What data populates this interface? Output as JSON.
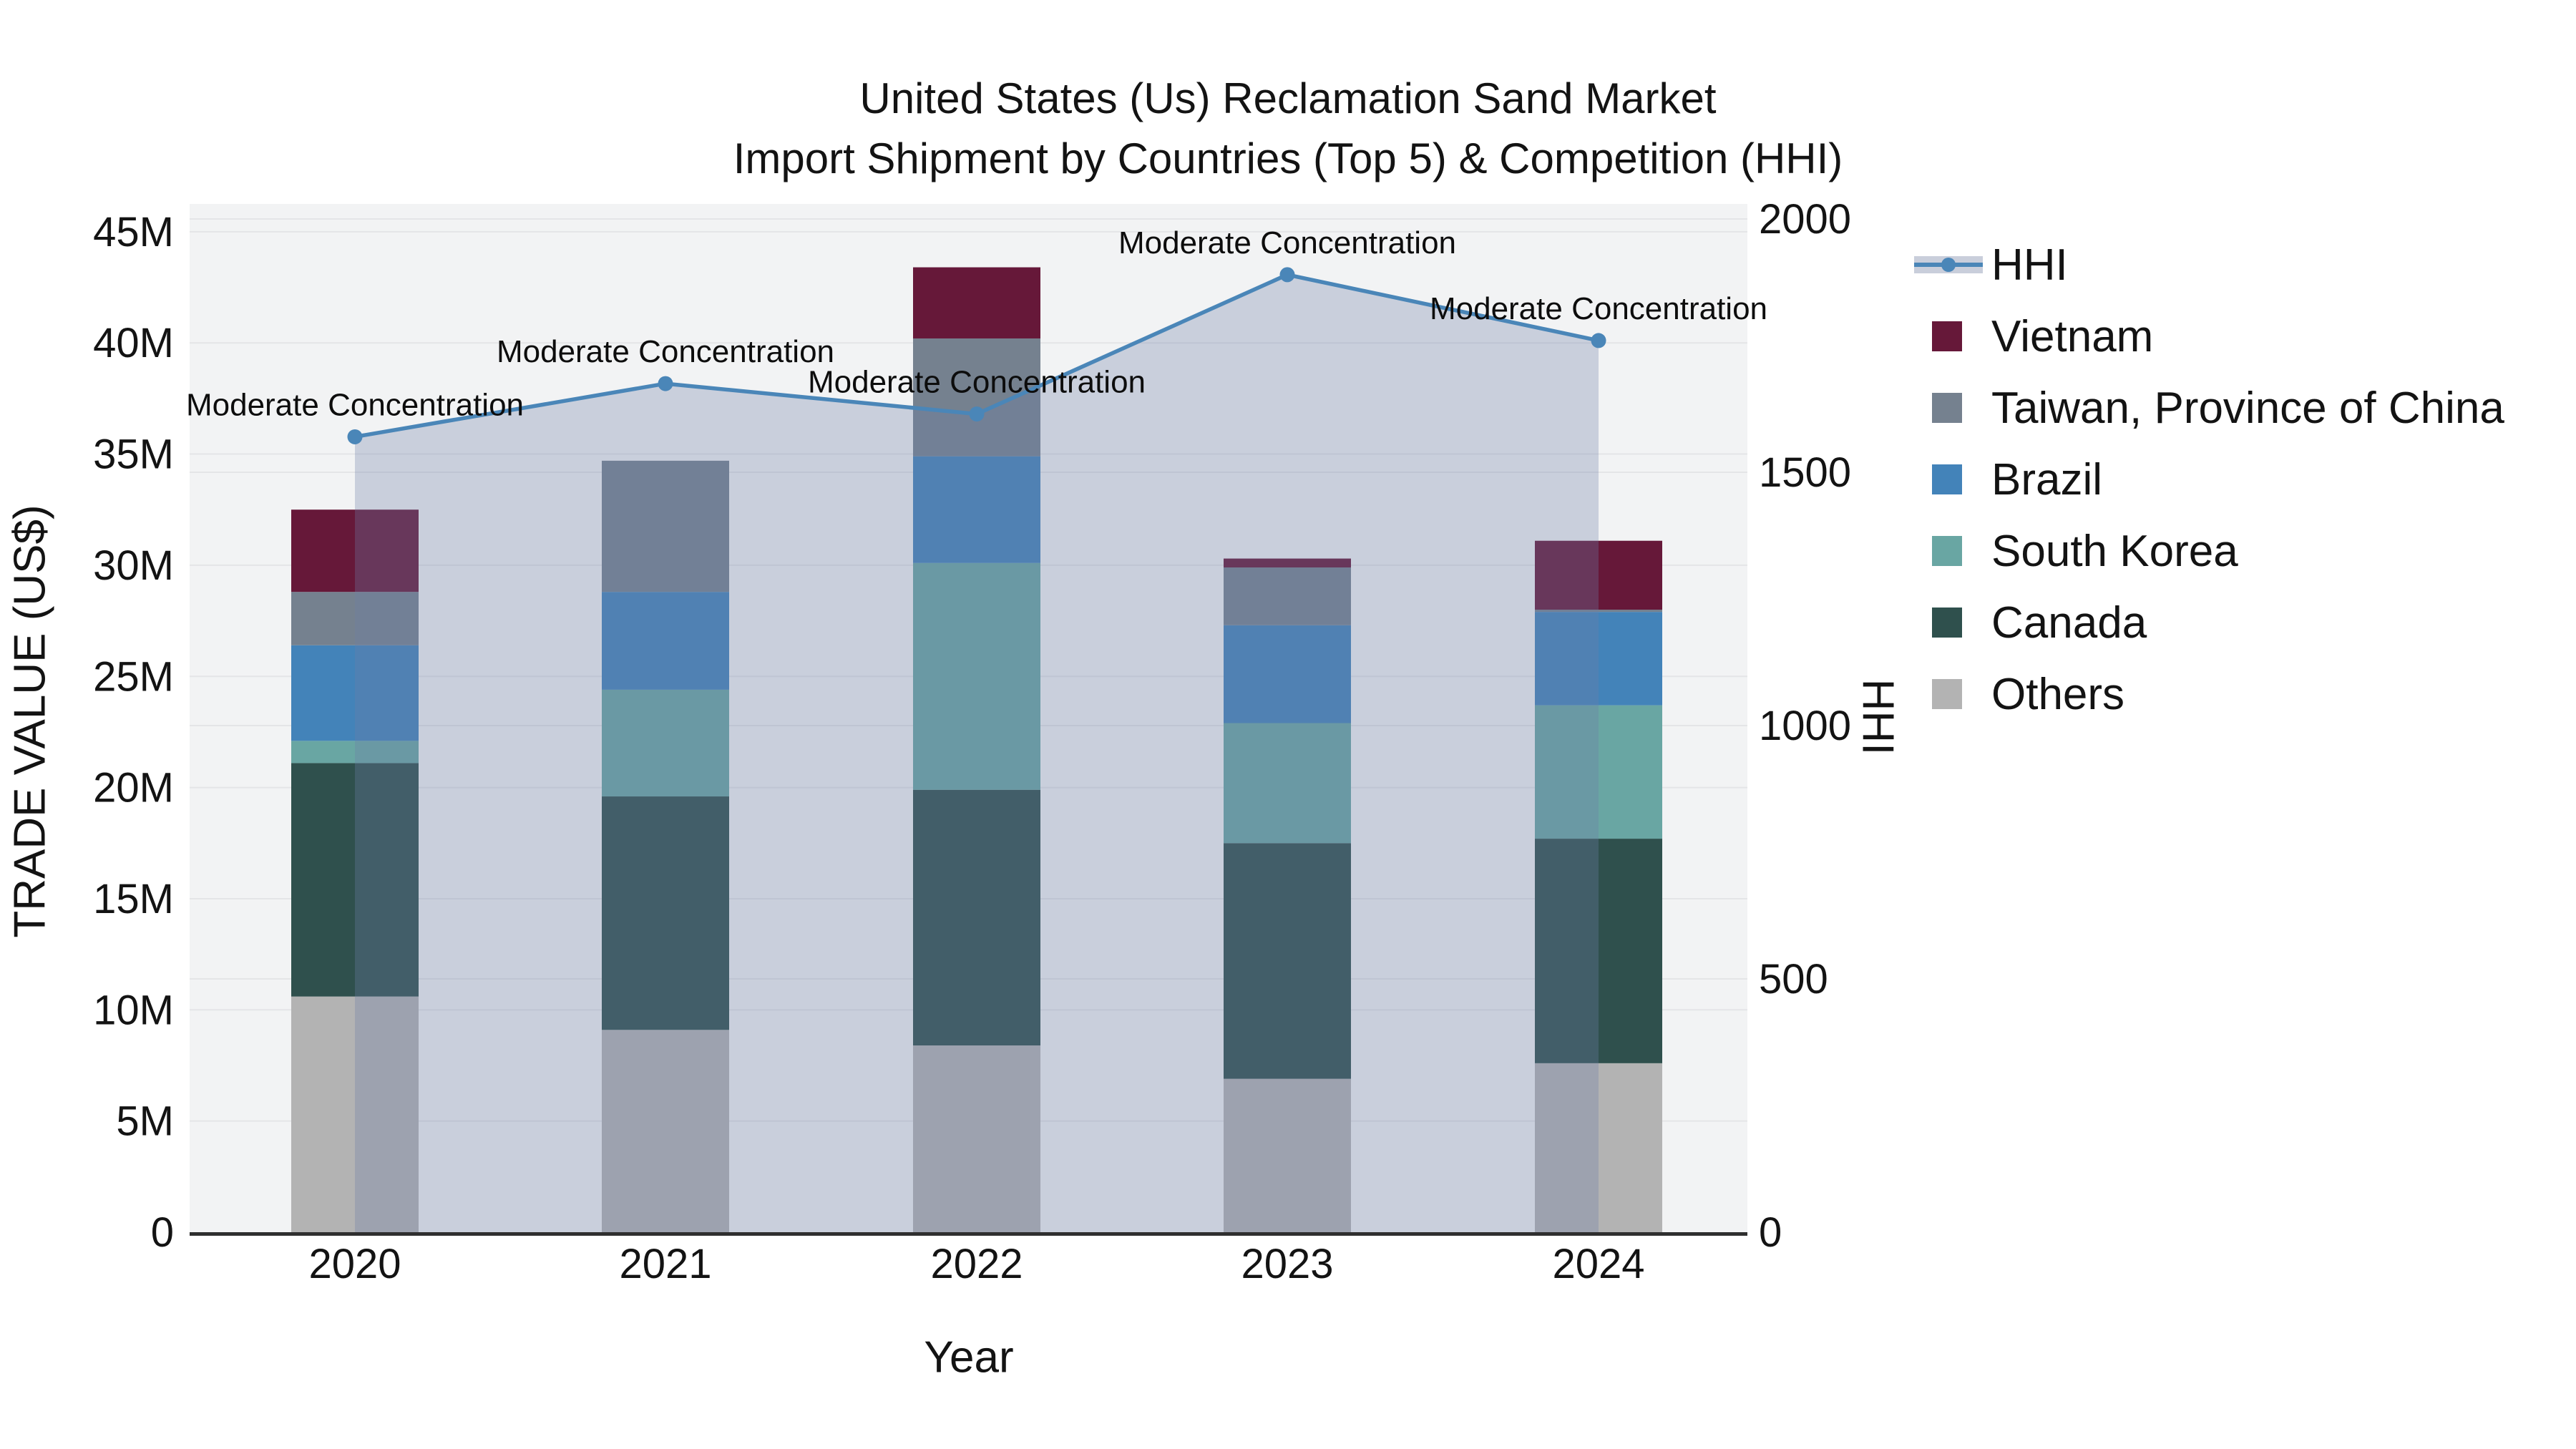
{
  "chart_data": {
    "type": "bar+line",
    "title_lines": [
      "United States (Us) Reclamation Sand Market",
      "Import Shipment by Countries (Top 5) & Competition (HHI)"
    ],
    "x": {
      "title": "Year",
      "categories": [
        "2020",
        "2021",
        "2022",
        "2023",
        "2024"
      ]
    },
    "left_axis": {
      "title": "TRADE VALUE (US$)",
      "unit": "M US$",
      "tick_labels": [
        "0",
        "5M",
        "10M",
        "15M",
        "20M",
        "25M",
        "30M",
        "35M",
        "40M",
        "45M"
      ],
      "tick_values_musd": [
        0,
        5,
        10,
        15,
        20,
        25,
        30,
        35,
        40,
        45
      ],
      "range_musd": [
        0,
        45
      ],
      "grid": true
    },
    "right_axis": {
      "title": "HHI",
      "tick_labels": [
        "0",
        "500",
        "1000",
        "1500",
        "2000"
      ],
      "tick_values": [
        0,
        500,
        1000,
        1500,
        2000
      ],
      "range": [
        0,
        2000
      ],
      "grid": true
    },
    "stack_series_bottom_to_top": [
      {
        "name": "Others",
        "color": "#b3b3b3",
        "values_musd": [
          10.6,
          9.1,
          8.4,
          6.9,
          7.6
        ]
      },
      {
        "name": "Canada",
        "color": "#2f504d",
        "values_musd": [
          10.5,
          10.5,
          11.5,
          10.6,
          10.1
        ]
      },
      {
        "name": "South Korea",
        "color": "#69a6a3",
        "values_musd": [
          1.0,
          4.8,
          10.2,
          5.4,
          6.0
        ]
      },
      {
        "name": "Brazil",
        "color": "#4383b9",
        "values_musd": [
          4.3,
          4.4,
          4.8,
          4.4,
          4.2
        ]
      },
      {
        "name": "Taiwan, Province of China",
        "color": "#75818f",
        "values_musd": [
          2.4,
          5.9,
          5.3,
          2.6,
          0.1
        ]
      },
      {
        "name": "Vietnam",
        "color": "#661839",
        "values_musd": [
          3.7,
          0,
          3.2,
          0.4,
          3.1
        ]
      }
    ],
    "bar_totals_musd": [
      32.5,
      34.7,
      43.4,
      30.3,
      31.1
    ],
    "hhi_line": {
      "name": "HHI",
      "color": "#4a86b8",
      "area_color": "rgba(111,127,168,0.31)",
      "values": [
        1570,
        1675,
        1615,
        1890,
        1760
      ],
      "point_annotations": [
        "Moderate Concentration",
        "Moderate Concentration",
        "Moderate Concentration",
        "Moderate Concentration",
        "Moderate Concentration"
      ]
    },
    "legend": {
      "position": "right",
      "items": [
        {
          "label": "HHI",
          "type": "line",
          "color": "#4a86b8"
        },
        {
          "label": "Vietnam",
          "type": "square",
          "color": "#661839"
        },
        {
          "label": "Taiwan, Province of China",
          "type": "square",
          "color": "#75818f"
        },
        {
          "label": "Brazil",
          "type": "square",
          "color": "#4383b9"
        },
        {
          "label": "South Korea",
          "type": "square",
          "color": "#69a6a3"
        },
        {
          "label": "Canada",
          "type": "square",
          "color": "#2f504d"
        },
        {
          "label": "Others",
          "type": "square",
          "color": "#b3b3b3"
        }
      ]
    }
  },
  "colors": {
    "page_bg": "#ffffff",
    "plot_bg": "#f2f3f4",
    "grid": "#e4e5e7",
    "axis_line": "#2f2f2f",
    "text": "#131313",
    "legend_hhi_band": "#c9cedb"
  }
}
